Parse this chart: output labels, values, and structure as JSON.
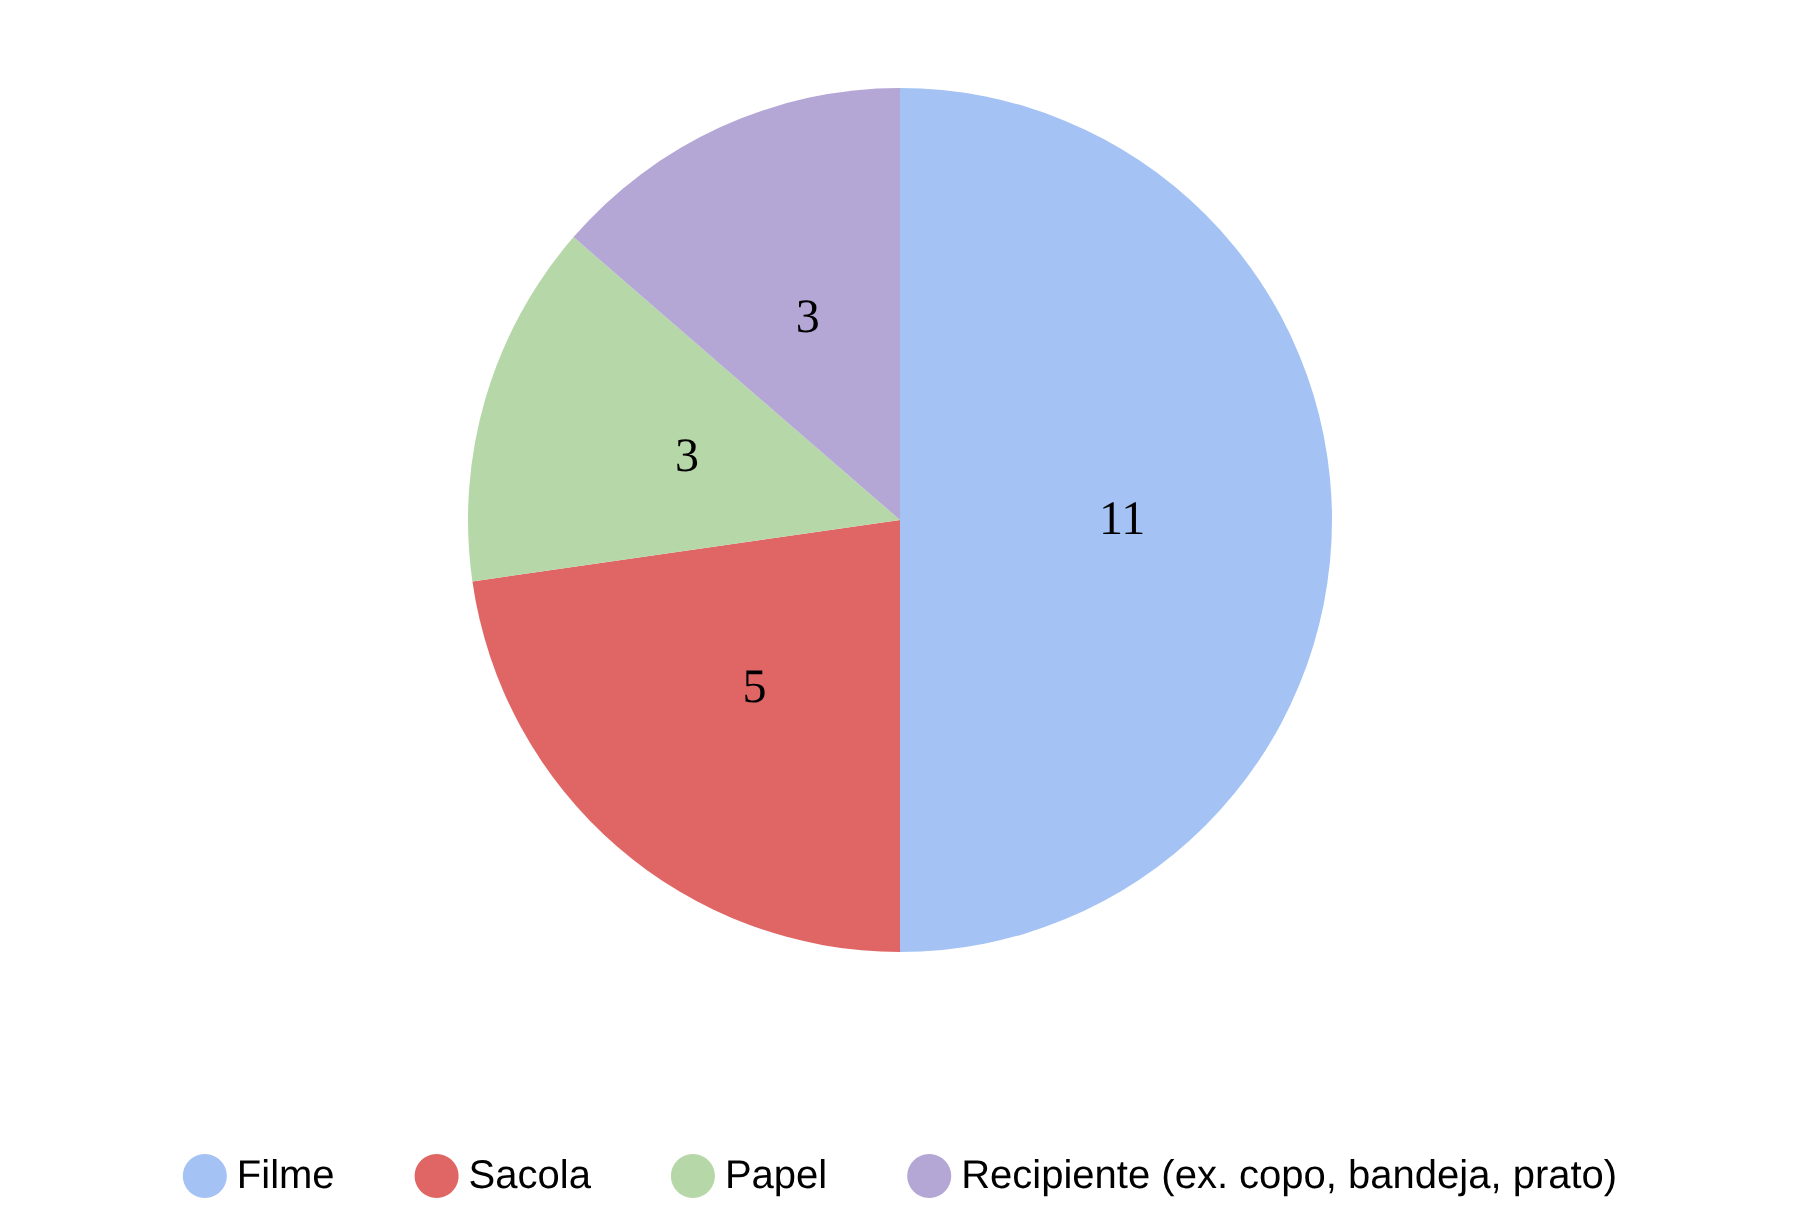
{
  "chart_data": {
    "type": "pie",
    "categories": [
      "Filme",
      "Sacola",
      "Papel",
      "Recipiente (ex. copo, bandeja, prato)"
    ],
    "values": [
      11,
      5,
      3,
      3
    ],
    "colors": [
      "#a4c2f4",
      "#e06666",
      "#b6d7a8",
      "#b4a7d6"
    ],
    "data_labels": true,
    "legend": "bottom"
  }
}
